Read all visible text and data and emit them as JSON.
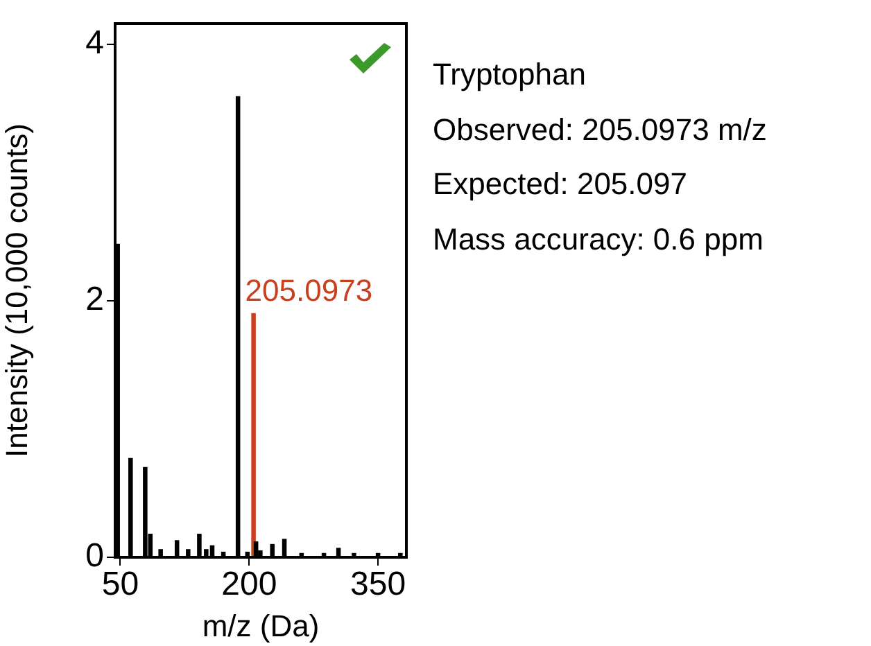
{
  "chart_data": {
    "type": "bar",
    "xlabel": "m/z (Da)",
    "ylabel": "Intensity (10,000 counts)",
    "x": [
      47,
      62,
      79,
      85,
      97,
      116,
      129,
      142,
      150,
      157,
      170,
      187,
      198,
      205.0973,
      208,
      213,
      227,
      241,
      261,
      287,
      304,
      322,
      350,
      376
    ],
    "values": [
      2.44,
      0.77,
      0.7,
      0.18,
      0.06,
      0.13,
      0.06,
      0.18,
      0.06,
      0.09,
      0.04,
      3.59,
      0.04,
      1.9,
      0.12,
      0.05,
      0.1,
      0.14,
      0.03,
      0.03,
      0.07,
      0.03,
      0.03,
      0.03
    ],
    "colors": [
      "#000000",
      "#000000",
      "#000000",
      "#000000",
      "#000000",
      "#000000",
      "#000000",
      "#000000",
      "#000000",
      "#000000",
      "#000000",
      "#000000",
      "#000000",
      "#c8401e",
      "#000000",
      "#000000",
      "#000000",
      "#000000",
      "#000000",
      "#000000",
      "#000000",
      "#000000",
      "#000000",
      "#000000"
    ],
    "xlim": [
      44,
      383
    ],
    "xticks": [
      50,
      200,
      350
    ],
    "ylim": [
      0,
      4.16
    ],
    "yticks": [
      0,
      2,
      4
    ],
    "grid": false,
    "legend": false,
    "annotations": [
      {
        "text": "205.0973",
        "x": 205.0973,
        "y": 1.9
      },
      "Tryptophan",
      "Observed: 205.0973 m/z",
      "Expected: 205.097",
      "Mass accuracy: 0.6 ppm"
    ]
  }
}
